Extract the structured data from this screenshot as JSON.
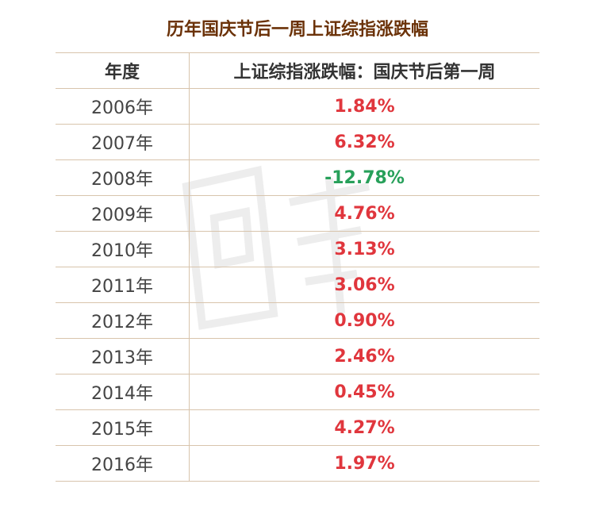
{
  "chart_data": {
    "type": "table",
    "title": "历年国庆节后一周上证综指涨跌幅",
    "columns": [
      "年度",
      "上证综指涨跌幅：国庆节后第一周"
    ],
    "rows": [
      {
        "year": "2006年",
        "value": 1.84,
        "label": "1.84%"
      },
      {
        "year": "2007年",
        "value": 6.32,
        "label": "6.32%"
      },
      {
        "year": "2008年",
        "value": -12.78,
        "label": "-12.78%"
      },
      {
        "year": "2009年",
        "value": 4.76,
        "label": "4.76%"
      },
      {
        "year": "2010年",
        "value": 3.13,
        "label": "3.13%"
      },
      {
        "year": "2011年",
        "value": 3.06,
        "label": "3.06%"
      },
      {
        "year": "2012年",
        "value": 0.9,
        "label": "0.90%"
      },
      {
        "year": "2013年",
        "value": 2.46,
        "label": "2.46%"
      },
      {
        "year": "2014年",
        "value": 0.45,
        "label": "0.45%"
      },
      {
        "year": "2015年",
        "value": 4.27,
        "label": "4.27%"
      },
      {
        "year": "2016年",
        "value": 1.97,
        "label": "1.97%"
      }
    ]
  },
  "colors": {
    "title": "#6b3208",
    "positive": "#e0363d",
    "negative": "#27a05a",
    "border": "#d8c4ac"
  }
}
